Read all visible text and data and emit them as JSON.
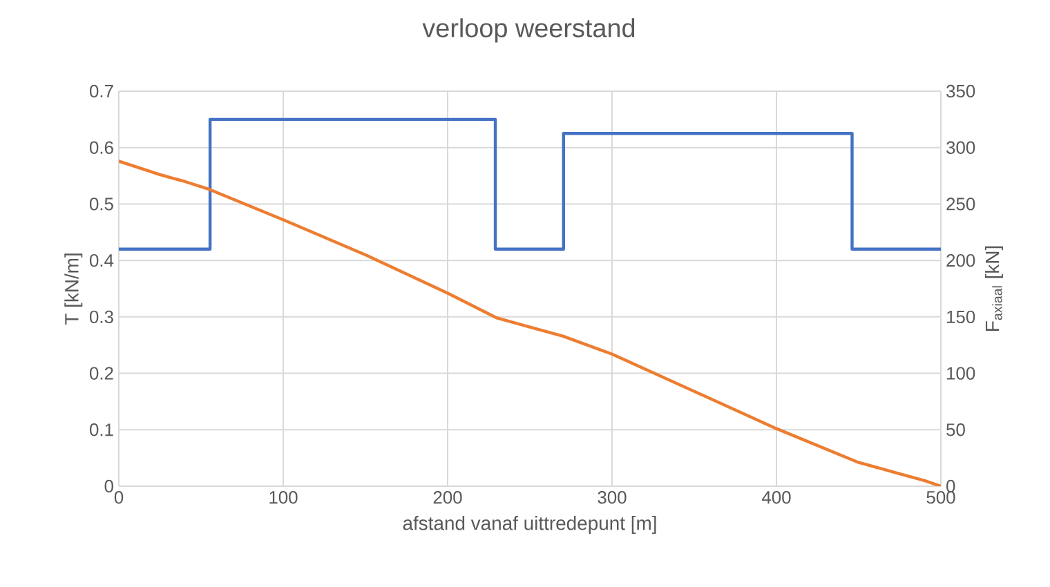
{
  "chart_data": {
    "type": "line",
    "title": "verloop weerstand",
    "xlabel": "afstand vanaf uittredepunt [m]",
    "ylabel": "T [kN/m]",
    "y2label": "F$_{axiaal}$ [kN]",
    "series": [
      {
        "color": "#4472c4",
        "x": [
          0,
          55.5,
          55.5,
          229,
          229,
          270.5,
          270.5,
          446,
          446,
          500
        ],
        "values": [
          0.42,
          0.42,
          0.65,
          0.65,
          0.42,
          0.42,
          0.625,
          0.625,
          0.42,
          0.42
        ]
      },
      {
        "color": "#ed7d31",
        "axis": "y2",
        "x": [
          0,
          25,
          40,
          55,
          100,
          150,
          200,
          230,
          250,
          270,
          300,
          350,
          400,
          450,
          475,
          490,
          500
        ],
        "values": [
          288,
          276,
          270,
          263,
          236,
          205,
          171,
          149,
          141,
          133,
          117,
          84,
          51,
          21,
          11,
          5,
          0
        ]
      }
    ],
    "xlim": [
      0,
      500
    ],
    "xticks": [
      0,
      100,
      200,
      300,
      400,
      500
    ],
    "ylim": [
      0,
      0.7
    ],
    "yticks": [
      0,
      0.1,
      0.2,
      0.3,
      0.4,
      0.5,
      0.6,
      0.7
    ],
    "y2lim": [
      0,
      350
    ],
    "y2ticks": [
      0,
      50,
      100,
      150,
      200,
      250,
      300,
      350
    ],
    "grid": true
  }
}
